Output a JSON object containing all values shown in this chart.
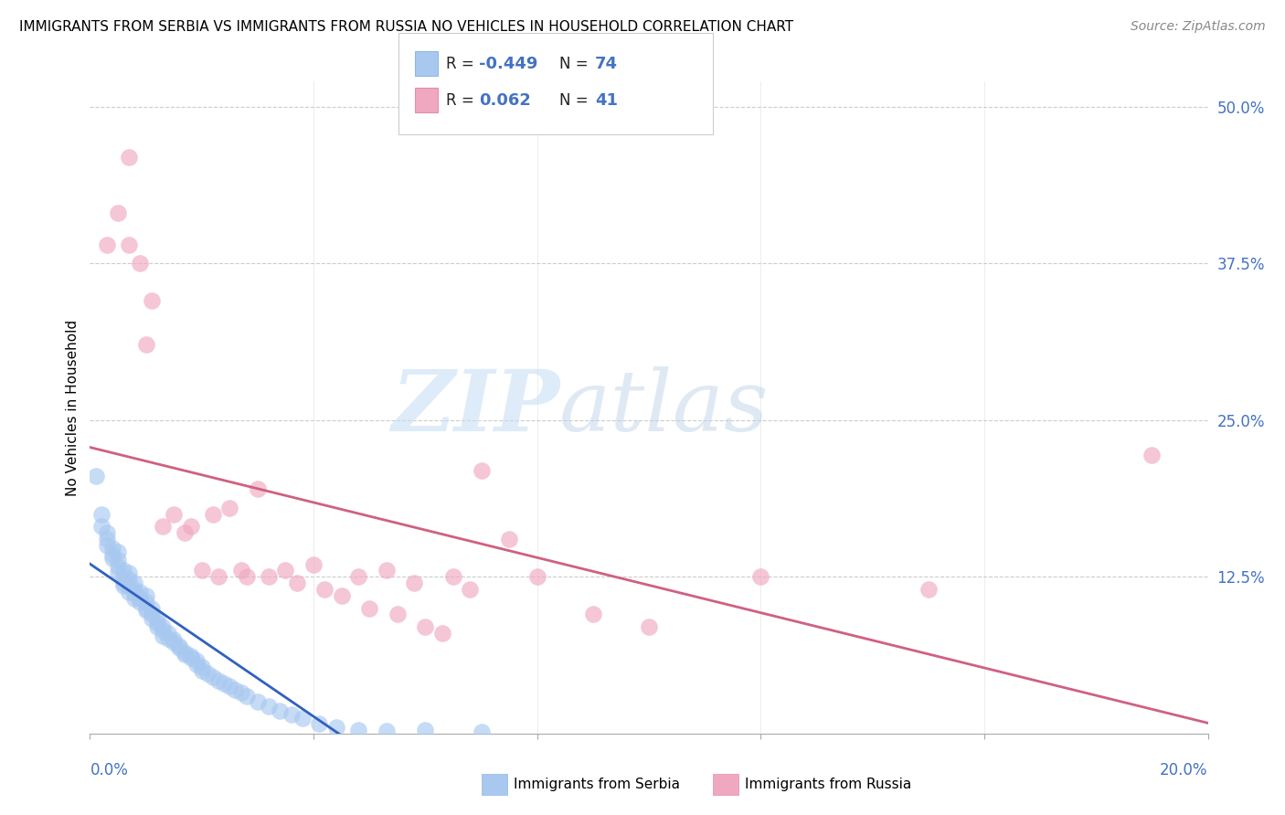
{
  "title": "IMMIGRANTS FROM SERBIA VS IMMIGRANTS FROM RUSSIA NO VEHICLES IN HOUSEHOLD CORRELATION CHART",
  "source": "Source: ZipAtlas.com",
  "ylabel": "No Vehicles in Household",
  "xlim": [
    0.0,
    0.2
  ],
  "ylim": [
    0.0,
    0.52
  ],
  "serbia_R": -0.449,
  "serbia_N": 74,
  "russia_R": 0.062,
  "russia_N": 41,
  "serbia_color": "#a8c8f0",
  "russia_color": "#f0a8c0",
  "serbia_line_color": "#3060c0",
  "russia_line_color": "#d06080",
  "serbia_x": [
    0.001,
    0.002,
    0.002,
    0.003,
    0.003,
    0.003,
    0.004,
    0.004,
    0.004,
    0.005,
    0.005,
    0.005,
    0.005,
    0.006,
    0.006,
    0.006,
    0.006,
    0.007,
    0.007,
    0.007,
    0.007,
    0.008,
    0.008,
    0.008,
    0.008,
    0.009,
    0.009,
    0.009,
    0.01,
    0.01,
    0.01,
    0.01,
    0.011,
    0.011,
    0.011,
    0.012,
    0.012,
    0.012,
    0.013,
    0.013,
    0.013,
    0.014,
    0.014,
    0.015,
    0.015,
    0.016,
    0.016,
    0.017,
    0.017,
    0.018,
    0.018,
    0.019,
    0.019,
    0.02,
    0.02,
    0.021,
    0.022,
    0.023,
    0.024,
    0.025,
    0.026,
    0.027,
    0.028,
    0.03,
    0.032,
    0.034,
    0.036,
    0.038,
    0.041,
    0.044,
    0.048,
    0.053,
    0.06,
    0.07
  ],
  "serbia_y": [
    0.205,
    0.175,
    0.165,
    0.16,
    0.155,
    0.15,
    0.148,
    0.143,
    0.14,
    0.145,
    0.138,
    0.133,
    0.128,
    0.13,
    0.125,
    0.12,
    0.118,
    0.128,
    0.123,
    0.118,
    0.113,
    0.12,
    0.115,
    0.112,
    0.108,
    0.113,
    0.108,
    0.105,
    0.11,
    0.105,
    0.1,
    0.098,
    0.1,
    0.095,
    0.092,
    0.092,
    0.088,
    0.085,
    0.085,
    0.082,
    0.078,
    0.08,
    0.076,
    0.075,
    0.073,
    0.07,
    0.068,
    0.065,
    0.063,
    0.062,
    0.06,
    0.058,
    0.055,
    0.053,
    0.05,
    0.048,
    0.045,
    0.042,
    0.04,
    0.038,
    0.035,
    0.033,
    0.03,
    0.025,
    0.022,
    0.018,
    0.015,
    0.012,
    0.008,
    0.005,
    0.003,
    0.002,
    0.003,
    0.001
  ],
  "russia_x": [
    0.003,
    0.005,
    0.007,
    0.007,
    0.009,
    0.01,
    0.011,
    0.013,
    0.015,
    0.017,
    0.018,
    0.02,
    0.022,
    0.023,
    0.025,
    0.027,
    0.028,
    0.03,
    0.032,
    0.035,
    0.037,
    0.04,
    0.042,
    0.045,
    0.048,
    0.05,
    0.053,
    0.055,
    0.058,
    0.06,
    0.063,
    0.065,
    0.068,
    0.07,
    0.075,
    0.08,
    0.09,
    0.1,
    0.12,
    0.15,
    0.19
  ],
  "russia_y": [
    0.39,
    0.415,
    0.39,
    0.46,
    0.375,
    0.31,
    0.345,
    0.165,
    0.175,
    0.16,
    0.165,
    0.13,
    0.175,
    0.125,
    0.18,
    0.13,
    0.125,
    0.195,
    0.125,
    0.13,
    0.12,
    0.135,
    0.115,
    0.11,
    0.125,
    0.1,
    0.13,
    0.095,
    0.12,
    0.085,
    0.08,
    0.125,
    0.115,
    0.21,
    0.155,
    0.125,
    0.095,
    0.085,
    0.125,
    0.115,
    0.222
  ],
  "watermark_zip": "ZIP",
  "watermark_atlas": "atlas",
  "background_color": "#ffffff",
  "grid_color": "#cccccc",
  "tick_color": "#4472c4"
}
